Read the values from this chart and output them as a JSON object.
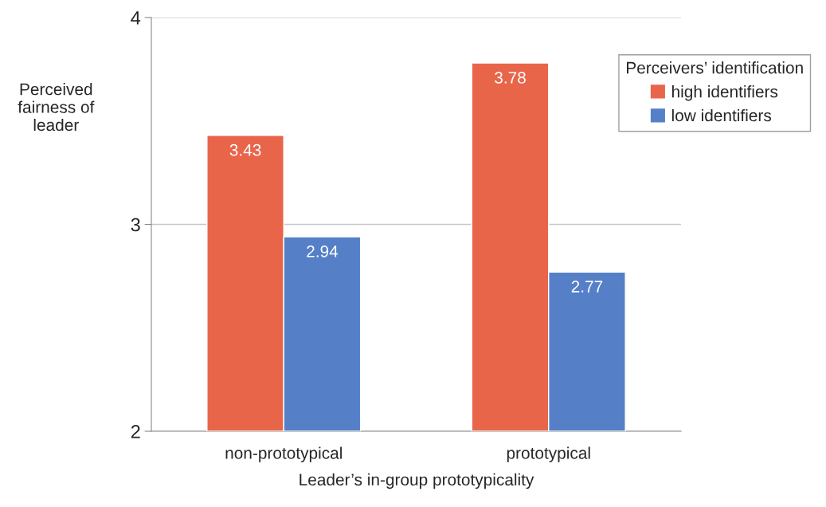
{
  "chart_data": {
    "type": "bar",
    "categories": [
      "non-prototypical",
      "prototypical"
    ],
    "series": [
      {
        "name": "high identifiers",
        "color": "#e8654a",
        "values": [
          3.43,
          3.78
        ]
      },
      {
        "name": "low identifiers",
        "color": "#5580c8",
        "values": [
          2.94,
          2.77
        ]
      }
    ],
    "xlabel": "Leader’s in-group prototypicality",
    "ylabel": "Perceived\nfairness of\nleader",
    "legend_title": "Perceivers’ identification",
    "ylim": [
      2,
      4
    ],
    "yticks": [
      2,
      3,
      4
    ],
    "grid": "y",
    "legend": "top right",
    "data_labels": true
  }
}
